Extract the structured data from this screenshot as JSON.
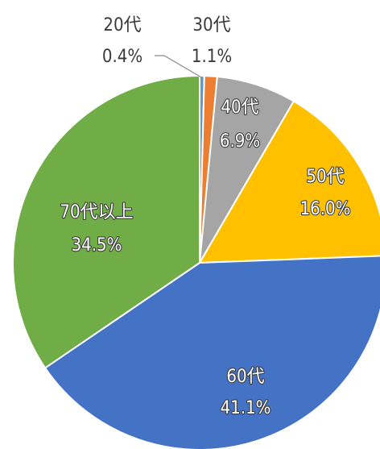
{
  "chart_data": {
    "type": "pie",
    "title": "",
    "categories": [
      "20代",
      "30代",
      "40代",
      "50代",
      "60代",
      "70代以上"
    ],
    "values": [
      0.4,
      1.1,
      6.9,
      16.0,
      41.1,
      34.5
    ],
    "value_labels": [
      "0.4%",
      "1.1%",
      "6.9%",
      "16.0%",
      "41.1%",
      "34.5%"
    ],
    "colors": [
      "#5b9bd5",
      "#ed7d31",
      "#a5a5a5",
      "#ffc000",
      "#4472c4",
      "#70ad47"
    ],
    "start_angle_deg": 0,
    "direction": "clockwise",
    "legend": "none",
    "data_labels": "category and percent"
  }
}
